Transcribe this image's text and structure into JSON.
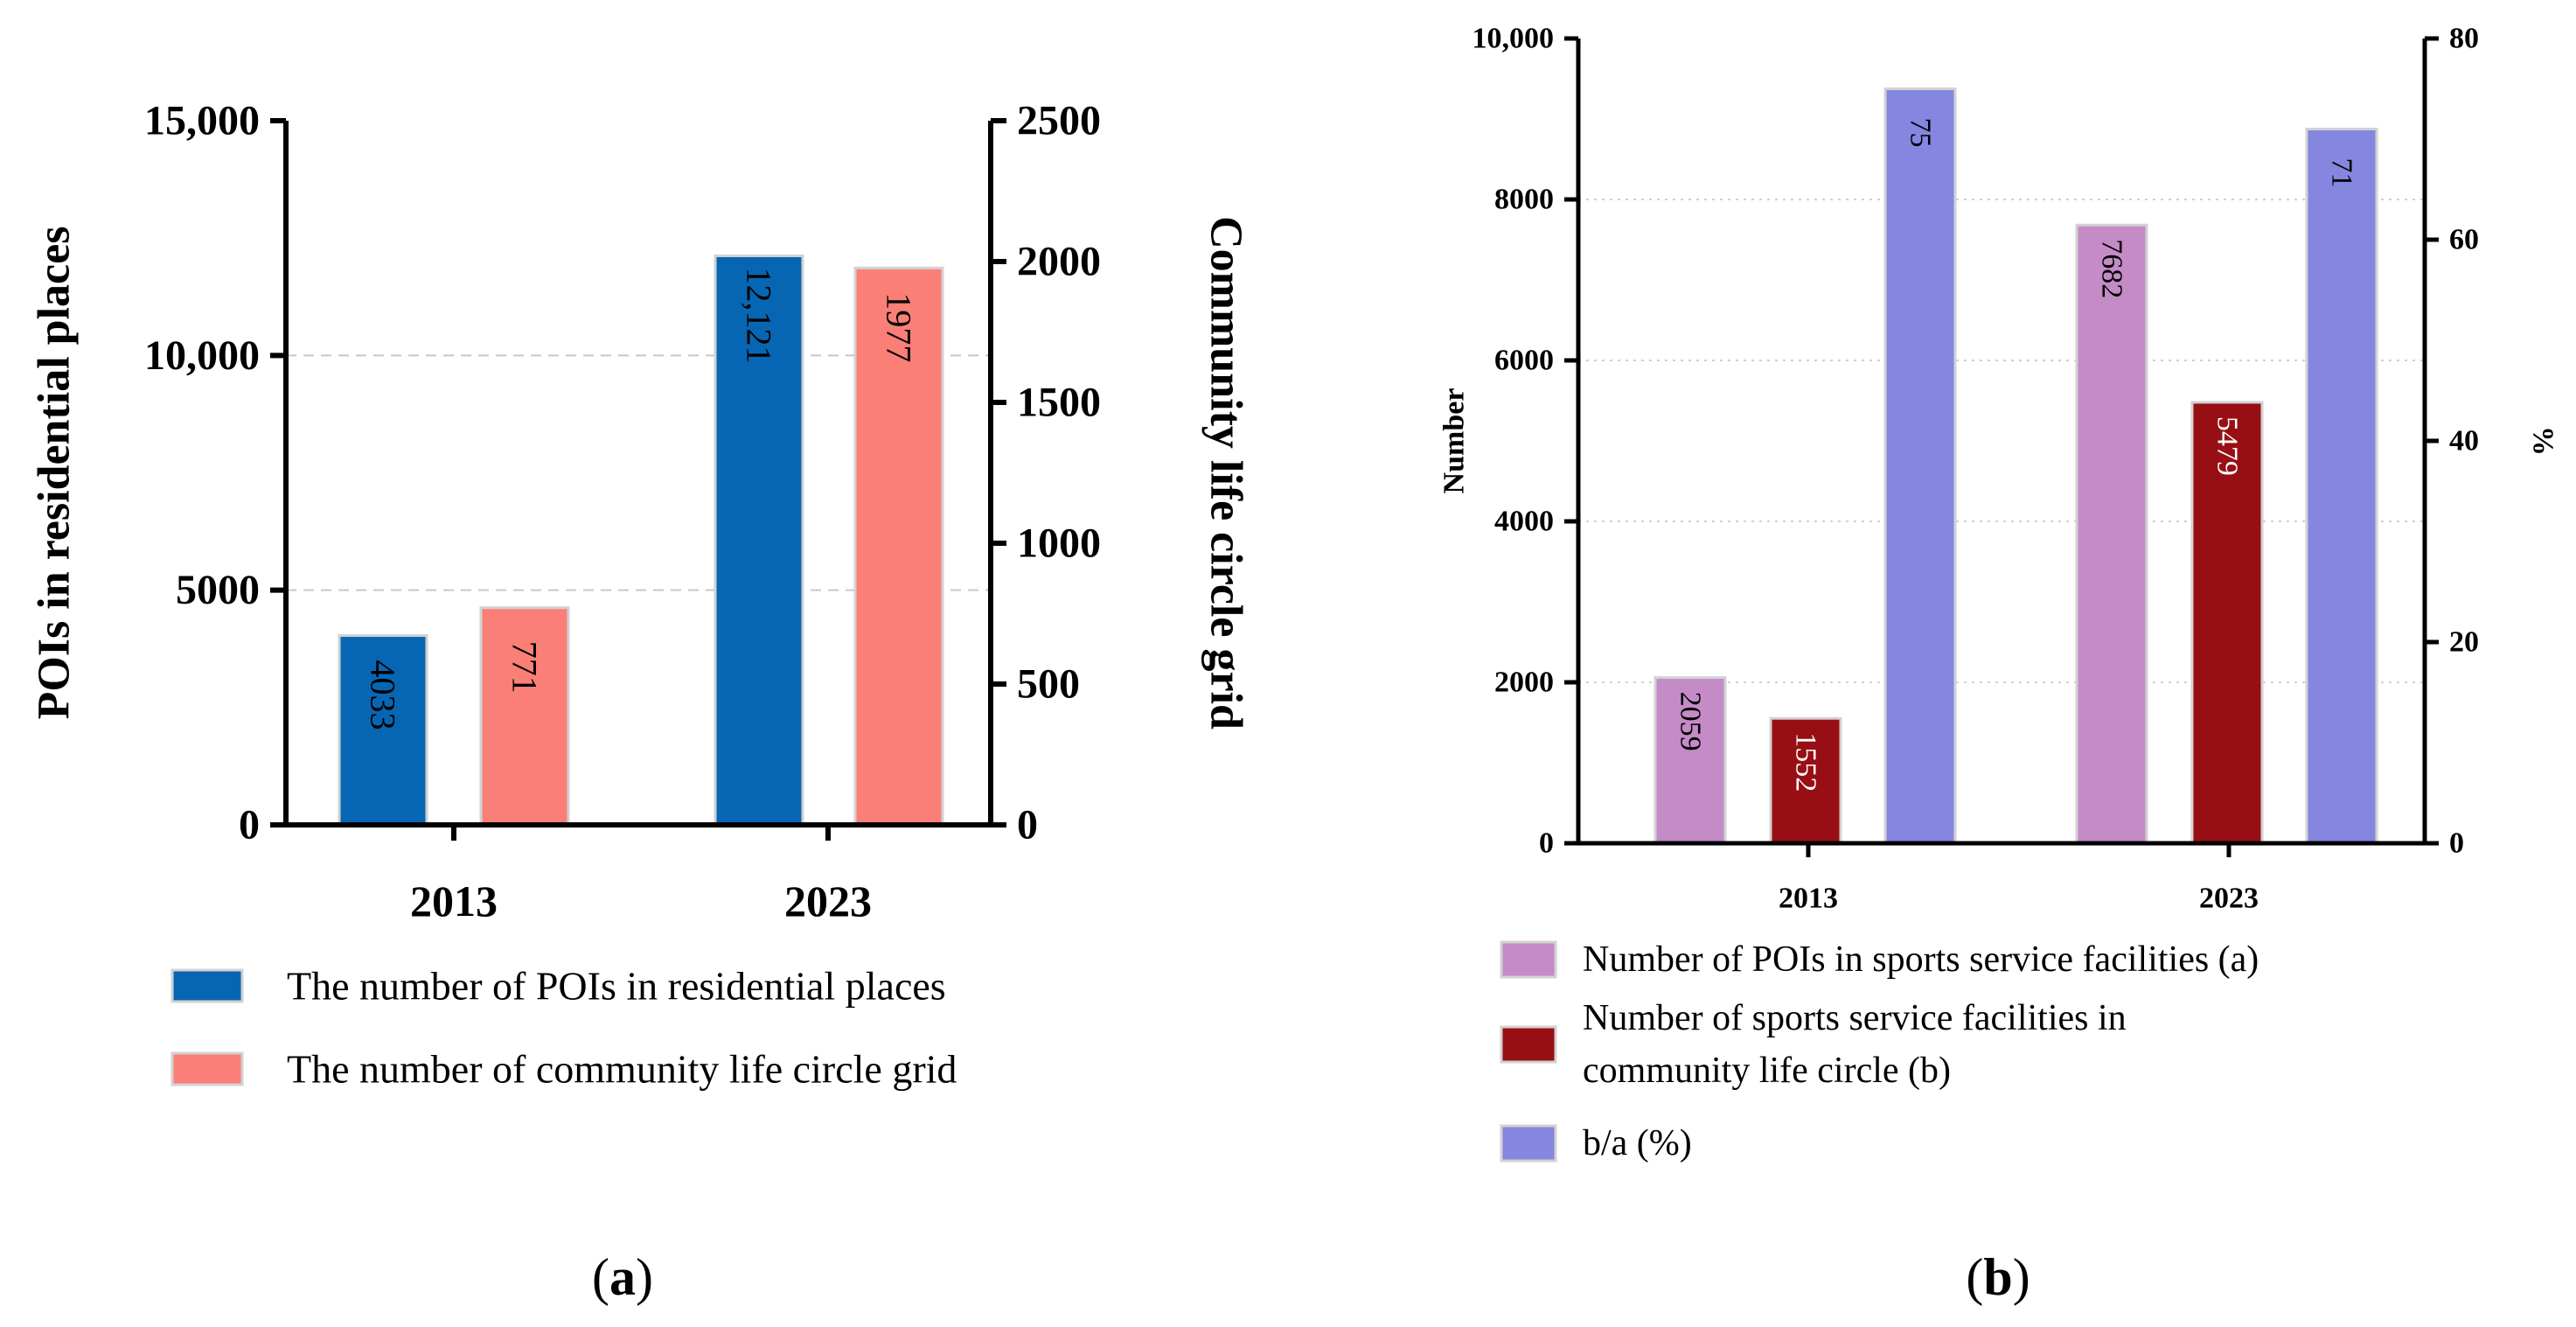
{
  "chart_data": [
    {
      "panel_label": "(a)",
      "type": "bar",
      "categories": [
        "2013",
        "2023"
      ],
      "series": [
        {
          "name": "The number of POIs in residential places",
          "axis": "left",
          "color": "#0766b3",
          "values": [
            4033,
            12121
          ],
          "labels": [
            "4033",
            "12,121"
          ]
        },
        {
          "name": "The number of community life circle grid",
          "axis": "right",
          "color": "#fa7f77",
          "values": [
            771,
            1977
          ],
          "labels": [
            "771",
            "1977"
          ]
        }
      ],
      "ylabel": "POIs in residential places",
      "ylabel_right": "Community life circle grid",
      "ylim": [
        0,
        15000
      ],
      "ylim_right": [
        0,
        2500
      ],
      "yticks": [
        0,
        5000,
        10000,
        15000
      ],
      "ytick_labels": [
        "0",
        "5000",
        "10,000",
        "15,000"
      ],
      "yticks_right": [
        0,
        500,
        1000,
        1500,
        2000,
        2500
      ],
      "ytick_labels_right": [
        "0",
        "500",
        "1000",
        "1500",
        "2000",
        "2500"
      ],
      "grid": "horizontal dashed at 5000 and 10000",
      "legend": "below"
    },
    {
      "panel_label": "(b)",
      "type": "bar",
      "categories": [
        "2013",
        "2023"
      ],
      "series": [
        {
          "name": "Number of POIs in sports service facilities (a)",
          "axis": "left",
          "color": "#c48bc7",
          "values": [
            2059,
            7682
          ],
          "labels": [
            "2059",
            "7682"
          ]
        },
        {
          "name": "Number of sports service facilities in community life circle (b)",
          "name_lines": [
            "Number of sports service facilities in",
            "community life circle (b)"
          ],
          "axis": "left",
          "color": "#970f14",
          "values": [
            1552,
            5479
          ],
          "labels": [
            "1552",
            "5479"
          ]
        },
        {
          "name": "b/a (%)",
          "axis": "right",
          "color": "#8486e0",
          "values": [
            75,
            71
          ],
          "labels": [
            "75",
            "71"
          ]
        }
      ],
      "ylabel": "Number",
      "ylabel_right": "%",
      "ylim": [
        0,
        10000
      ],
      "ylim_right": [
        0,
        80
      ],
      "yticks": [
        0,
        2000,
        4000,
        6000,
        8000,
        10000
      ],
      "ytick_labels": [
        "0",
        "2000",
        "4000",
        "6000",
        "8000",
        "10,000"
      ],
      "yticks_right": [
        0,
        20,
        40,
        60,
        80
      ],
      "ytick_labels_right": [
        "0",
        "20",
        "40",
        "60",
        "80"
      ],
      "grid": "horizontal dotted",
      "legend": "below"
    }
  ]
}
